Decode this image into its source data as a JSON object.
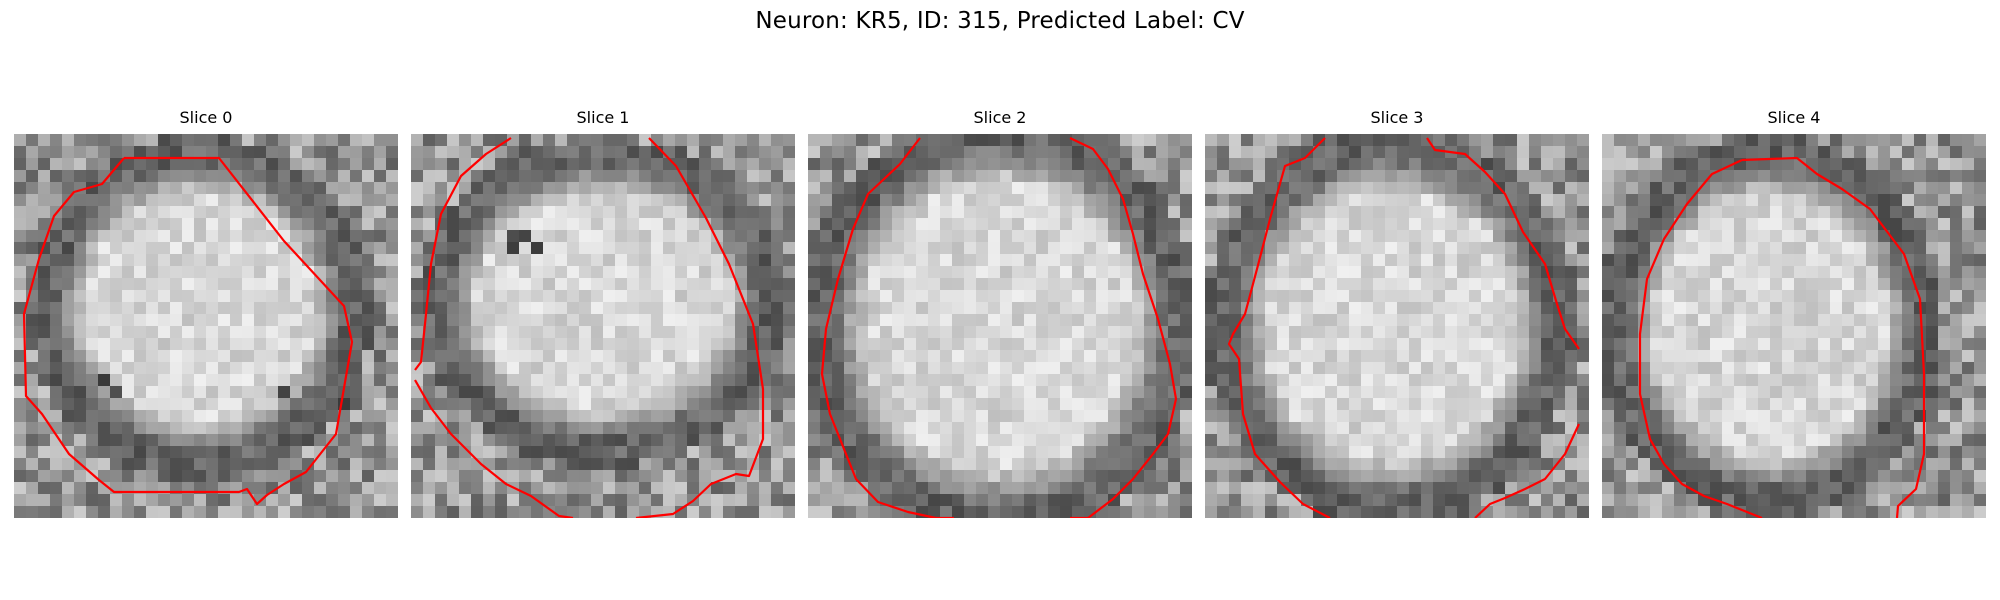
{
  "figure": {
    "title": "Neuron: KR5, ID: 315, Predicted Label: CV"
  },
  "colors": {
    "contour": "#ff0000",
    "background": "#ffffff"
  },
  "panels": [
    {
      "title": "Slice 0"
    },
    {
      "title": "Slice 1"
    },
    {
      "title": "Slice 2"
    },
    {
      "title": "Slice 3"
    },
    {
      "title": "Slice 4"
    }
  ]
}
